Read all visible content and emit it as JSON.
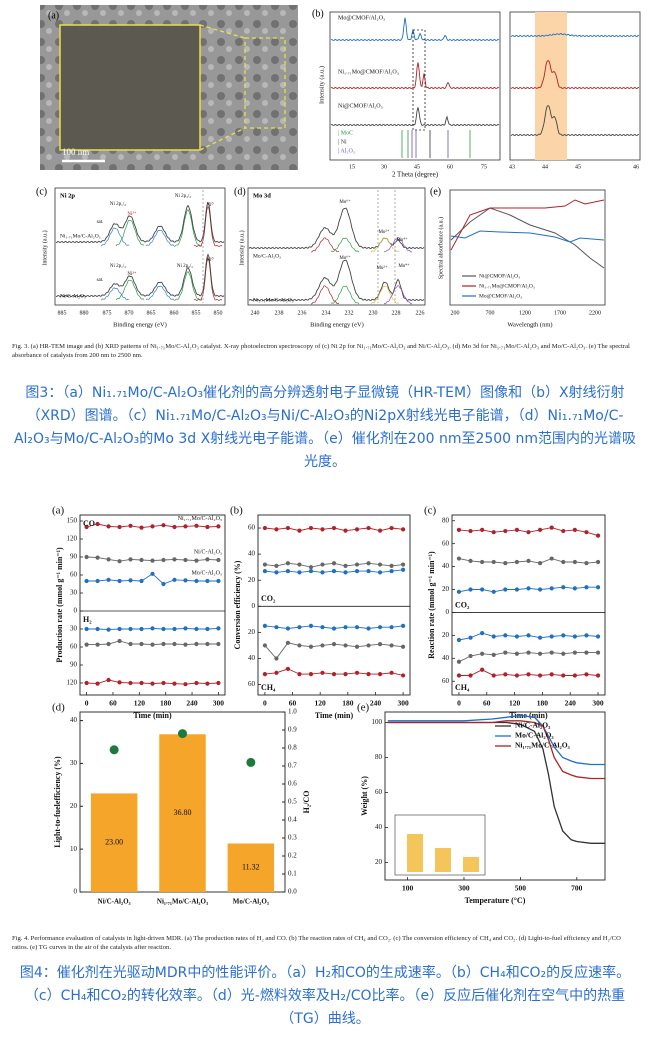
{
  "figure3": {
    "panels": [
      {
        "texts": [
          "(a)",
          "100 nm"
        ]
      },
      {
        "texts": [
          "(b)",
          "Mo@CMOF/Al₂O₃",
          "Ni₁.₇₁Mo@CMOF/Al₂O₃",
          "Ni@CMOF/Al₂O₃",
          "Intensity (a.u.)",
          "2 Theta (degree)",
          "15",
          "30",
          "45",
          "60",
          "75",
          "43",
          "44",
          "45",
          "46",
          "| MoC",
          "| Ni",
          "| Al₂O₃"
        ]
      },
      {
        "texts": [
          "(c)",
          "Ni 2p",
          "Ni₁.₇₁Mo/C-Al₂O₃",
          "Ni/C-Al₂O₃",
          "Intensity (a.u.)",
          "Binding energy (eV)",
          "885",
          "880",
          "875",
          "870",
          "865",
          "860",
          "855",
          "850",
          "sat.",
          "Ni 2p₁/₂",
          "Ni²⁺",
          "Ni 2p₃/₂",
          "Ni⁰",
          "sat.",
          "Ni 2p₁/₂",
          "Ni²⁺",
          "Ni 2p₃/₂",
          "Ni⁰"
        ]
      },
      {
        "texts": [
          "(d)",
          "Mo 3d",
          "Mo/C-Al₂O₃",
          "Ni₁.₇₁Mo/C-Al₂O₃",
          "Intensity (a.u.)",
          "Binding energy (eV)",
          "240",
          "238",
          "236",
          "234",
          "232",
          "230",
          "228",
          "226",
          "Mo⁶⁺",
          "Mo²⁺",
          "Mo⁴⁺",
          "Mo⁶⁺",
          "Mo²⁺",
          "Mo⁴⁺"
        ]
      },
      {
        "texts": [
          "(e)",
          "Spectral absorbance (a.u.)",
          "Wavelength (nm)",
          "200",
          "700",
          "1200",
          "1700",
          "2200",
          "Ni@CMOF/Al₂O₃",
          "Ni₁.₇₁Mo@CMOF/Al₂O₃",
          "Mo@CMOF/Al₂O₃"
        ]
      }
    ],
    "caption_en": "Fig. 3. (a) HR-TEM image and (b) XRD patterns of Ni₁.₇₁Mo/C-Al₂O₃ catalyst. X-ray photoelectron spectroscopy of (c) Ni 2p for Ni₁.₇₁Mo/C-Al₂O₃ and Ni/C-Al₂O₃. (d) Mo 3d for Ni₁.₇₁Mo/C-Al₂O₃ and Mo/C-Al₂O₃. (e) The spectral absorbance of catalysts from 200 nm to 2500 nm.",
    "caption_zh": "图3：（a）Ni₁.₇₁Mo/C-Al₂O₃催化剂的高分辨透射电子显微镜（HR-TEM）图像和（b）X射线衍射（XRD）图谱。（c）Ni₁.₇₁Mo/C-Al₂O₃与Ni/C-Al₂O₃的Ni2pX射线光电子能谱，（d）Ni₁.₇₁Mo/C-Al₂O₃与Mo/C-Al₂O₃的Mo 3d X射线光电子能谱。（e）催化剂在200 nm至2500 nm范围内的光谱吸光度。"
  },
  "chart_data": [
    {
      "type": "line",
      "label": "(a)",
      "y_label": "Production rate (mmol g⁻¹ min⁻¹)",
      "x_label": "Time (min)",
      "annotations": [
        "CO",
        "H₂"
      ],
      "markers": true,
      "x": [
        0,
        25,
        50,
        75,
        100,
        125,
        150,
        175,
        200,
        225,
        250,
        275,
        300
      ],
      "xlim": [
        -15,
        315
      ],
      "xticks": [
        0,
        60,
        120,
        180,
        240,
        300
      ],
      "ylim": [
        -140,
        160
      ],
      "yticks": [
        0,
        30,
        60,
        90,
        120,
        150,
        {
          "value": -30,
          "label": "30"
        },
        {
          "value": -60,
          "label": "60"
        },
        {
          "value": -90,
          "label": "90"
        },
        {
          "value": -120,
          "label": "120"
        }
      ],
      "series": [
        {
          "name": "Ni₁.₇₁Mo/C-Al₂O₃",
          "color": "#b3202a",
          "values": [
            140,
            145,
            141,
            140,
            142,
            139,
            141,
            143,
            140,
            141,
            142,
            140,
            141
          ]
        },
        {
          "name": "Ni/C-Al₂O₃",
          "color": "#666666",
          "values": [
            90,
            89,
            86,
            83,
            86,
            85,
            84,
            85,
            86,
            85,
            84,
            86,
            85
          ]
        },
        {
          "name": "Mo/C-Al₂O₃",
          "color": "#1f6fc5",
          "values": [
            50,
            50,
            52,
            50,
            51,
            50,
            62,
            45,
            52,
            51,
            50,
            50,
            50
          ]
        },
        {
          "color": "#1f6fc5",
          "values": [
            -30,
            -30,
            -31,
            -30,
            -30,
            -30,
            -29,
            -30,
            -30,
            -29,
            -30,
            -30,
            -29
          ]
        },
        {
          "color": "#666666",
          "values": [
            -56,
            -56,
            -55,
            -50,
            -55,
            -55,
            -56,
            -55,
            -55,
            -56,
            -55,
            -55,
            -55
          ]
        },
        {
          "color": "#b3202a",
          "values": [
            -120,
            -121,
            -115,
            -119,
            -120,
            -120,
            -121,
            -120,
            -121,
            -122,
            -120,
            -121,
            -120
          ]
        }
      ]
    },
    {
      "type": "line",
      "label": "(b)",
      "y_label": "Conversion efficiency (%)",
      "x_label": "Time (min)",
      "annotations": [
        "CO₂",
        "CH₄"
      ],
      "markers": true,
      "x": [
        0,
        25,
        50,
        75,
        100,
        125,
        150,
        175,
        200,
        225,
        250,
        275,
        300
      ],
      "xlim": [
        -15,
        315
      ],
      "xticks": [
        0,
        60,
        120,
        180,
        240,
        300
      ],
      "ylim": [
        -68,
        70
      ],
      "yticks": [
        0,
        20,
        40,
        60,
        {
          "value": -20,
          "label": "20"
        },
        {
          "value": -40,
          "label": "40"
        },
        {
          "value": -60,
          "label": "60"
        }
      ],
      "series": [
        {
          "color": "#b3202a",
          "values": [
            60,
            59,
            60,
            58,
            60,
            59,
            60,
            58,
            59,
            60,
            58,
            60,
            59
          ]
        },
        {
          "color": "#666666",
          "values": [
            32,
            31,
            33,
            32,
            30,
            32,
            33,
            31,
            32,
            33,
            32,
            31,
            32
          ]
        },
        {
          "color": "#1f6fc5",
          "values": [
            27,
            26,
            27,
            26,
            27,
            26,
            27,
            26,
            27,
            27,
            26,
            27,
            28
          ]
        },
        {
          "color": "#1f6fc5",
          "values": [
            -15,
            -16,
            -17,
            -16,
            -15,
            -16,
            -17,
            -16,
            -16,
            -17,
            -16,
            -16,
            -15
          ]
        },
        {
          "color": "#666666",
          "values": [
            -30,
            -40,
            -28,
            -30,
            -31,
            -30,
            -29,
            -30,
            -31,
            -30,
            -29,
            -30,
            -31
          ]
        },
        {
          "color": "#b3202a",
          "values": [
            -52,
            -51,
            -48,
            -52,
            -52,
            -51,
            -52,
            -52,
            -51,
            -52,
            -52,
            -51,
            -53
          ]
        }
      ]
    },
    {
      "type": "line",
      "label": "(c)",
      "y_label": "Reaction rate (mmol g⁻¹ min⁻¹)",
      "x_label": "Time (min)",
      "annotations": [
        "CO₂",
        "CH₄"
      ],
      "markers": true,
      "x": [
        0,
        25,
        50,
        75,
        100,
        125,
        150,
        175,
        200,
        225,
        250,
        275,
        300
      ],
      "xlim": [
        -15,
        315
      ],
      "xticks": [
        0,
        60,
        120,
        180,
        240,
        300
      ],
      "ylim": [
        -72,
        85
      ],
      "yticks": [
        0,
        20,
        40,
        60,
        80,
        {
          "value": -20,
          "label": "20"
        },
        {
          "value": -40,
          "label": "40"
        },
        {
          "value": -60,
          "label": "60"
        }
      ],
      "series": [
        {
          "color": "#b3202a",
          "values": [
            72,
            71,
            72,
            70,
            71,
            72,
            70,
            72,
            74,
            71,
            72,
            70,
            67
          ]
        },
        {
          "color": "#666666",
          "values": [
            47,
            45,
            44,
            44,
            43,
            44,
            45,
            43,
            47,
            44,
            44,
            43,
            44
          ]
        },
        {
          "color": "#1f6fc5",
          "values": [
            18,
            20,
            20,
            18,
            20,
            20,
            21,
            20,
            21,
            22,
            21,
            22,
            22
          ]
        },
        {
          "color": "#1f6fc5",
          "values": [
            -24,
            -22,
            -18,
            -21,
            -20,
            -21,
            -20,
            -22,
            -21,
            -20,
            -21,
            -20,
            -21
          ]
        },
        {
          "color": "#666666",
          "values": [
            -43,
            -38,
            -36,
            -37,
            -35,
            -36,
            -35,
            -36,
            -35,
            -36,
            -35,
            -35,
            -35
          ]
        },
        {
          "color": "#b3202a",
          "values": [
            -55,
            -55,
            -50,
            -55,
            -54,
            -55,
            -54,
            -55,
            -54,
            -55,
            -55,
            -54,
            -55
          ]
        }
      ]
    },
    {
      "type": "bar",
      "label": "(d)",
      "y_label": "Light-to-fuelefficiency (%)",
      "y2_label": "H₂/CO",
      "categories": [
        "Ni/C-Al₂O₃",
        "Ni₁.₇₁Mo/C-Al₂O₃",
        "Mo/C-Al₂O₃"
      ],
      "ylim": [
        0,
        42
      ],
      "yticks": [
        0,
        10,
        20,
        30,
        40
      ],
      "y2lim": [
        0,
        1.0
      ],
      "y2ticks": [
        {
          "value": 0,
          "label": "0.0"
        },
        0.1,
        0.2,
        0.3,
        0.4,
        0.5,
        0.6,
        0.7,
        0.8,
        0.9,
        {
          "value": 1,
          "label": "1.0"
        }
      ],
      "series": [
        {
          "color": "#f4a52a",
          "values": [
            23.0,
            36.8,
            11.32
          ],
          "value_labels": [
            "23.00",
            "36.80",
            "11.32"
          ]
        },
        {
          "color": "#1b7a3c",
          "axis": "y2",
          "values": [
            0.79,
            0.88,
            0.72
          ]
        }
      ]
    },
    {
      "type": "line",
      "label": "(e)",
      "y_label": "Weight (%)",
      "x_label": "Temperature (°C)",
      "markers": false,
      "x": [
        30,
        100,
        200,
        300,
        400,
        450,
        500,
        550,
        580,
        600,
        620,
        650,
        680,
        700,
        750,
        800
      ],
      "xlim": [
        20,
        800
      ],
      "xticks": [
        100,
        300,
        500,
        700
      ],
      "ylim": [
        10,
        106
      ],
      "yticks": [
        20,
        40,
        60,
        80,
        100
      ],
      "series": [
        {
          "name": "Ni/C-Al₂O₃",
          "color": "#333333",
          "values": [
            100,
            100,
            100,
            100,
            100,
            100,
            99,
            95,
            85,
            70,
            52,
            38,
            33,
            32,
            31,
            31
          ]
        },
        {
          "name": "Mo/C-Al₂O₃",
          "color": "#1f6fc5",
          "values": [
            101,
            101,
            101,
            101,
            102,
            103,
            104,
            103,
            98,
            92,
            86,
            80,
            78,
            77,
            76,
            76
          ]
        },
        {
          "name": "Ni₁.₇₁Mo/C-Al₂O₃",
          "color": "#b3202a",
          "values": [
            100,
            100,
            100,
            100,
            100,
            101,
            101,
            100,
            98,
            90,
            80,
            72,
            70,
            69,
            68,
            68
          ]
        }
      ]
    }
  ],
  "figure4": {
    "caption_en": "Fig. 4. Performance evaluation of catalysts in light-driven MDR. (a) The production rates of H₂ and CO. (b) The reaction rates of CH₄ and CO₂. (c) The conversion efficiency of CH₄ and CO₂. (d) Light-to-fuel efficiency and H₂/CO ratios. (e) TG curves in the air of the catalysts after reaction.",
    "caption_zh": "图4：催化剂在光驱动MDR中的性能评价。（a）H₂和CO的生成速率。（b）CH₄和CO₂的反应速率。（c）CH₄和CO₂的转化效率。（d）光-燃料效率及H₂/CO比率。（e）反应后催化剂在空气中的热重（TG）曲线。"
  }
}
